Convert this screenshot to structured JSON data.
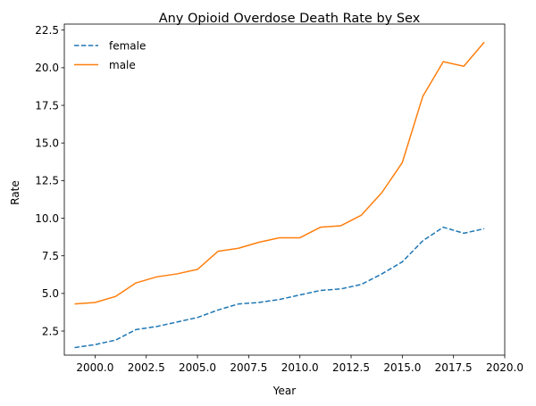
{
  "chart_data": {
    "type": "line",
    "title": "Any Opioid Overdose Death Rate by Sex",
    "xlabel": "Year",
    "ylabel": "Rate",
    "xlim": [
      1998.5,
      2020.0
    ],
    "ylim": [
      0.9,
      22.9
    ],
    "x_ticks": [
      2000.0,
      2002.5,
      2005.0,
      2007.5,
      2010.0,
      2012.5,
      2015.0,
      2017.5,
      2020.0
    ],
    "x_tick_labels": [
      "2000.0",
      "2002.5",
      "2005.0",
      "2007.5",
      "2010.0",
      "2012.5",
      "2015.0",
      "2017.5",
      "2020.0"
    ],
    "y_ticks": [
      2.5,
      5.0,
      7.5,
      10.0,
      12.5,
      15.0,
      17.5,
      20.0,
      22.5
    ],
    "y_tick_labels": [
      "2.5",
      "5.0",
      "7.5",
      "10.0",
      "12.5",
      "15.0",
      "17.5",
      "20.0",
      "22.5"
    ],
    "grid": false,
    "legend_position": "top-left",
    "x": [
      1999,
      2000,
      2001,
      2002,
      2003,
      2004,
      2005,
      2006,
      2007,
      2008,
      2009,
      2010,
      2011,
      2012,
      2013,
      2014,
      2015,
      2016,
      2017,
      2018,
      2019
    ],
    "series": [
      {
        "name": "female",
        "color": "#1f77b4",
        "style": "dashed",
        "values": [
          1.4,
          1.6,
          1.9,
          2.6,
          2.8,
          3.1,
          3.4,
          3.9,
          4.3,
          4.4,
          4.6,
          4.9,
          5.2,
          5.3,
          5.6,
          6.3,
          7.1,
          8.5,
          9.4,
          9.0,
          9.3
        ]
      },
      {
        "name": "male",
        "color": "#ff7f0e",
        "style": "solid",
        "values": [
          4.3,
          4.4,
          4.8,
          5.7,
          6.1,
          6.3,
          6.6,
          7.8,
          8.0,
          8.4,
          8.7,
          8.7,
          9.4,
          9.5,
          10.2,
          11.7,
          13.7,
          18.1,
          20.4,
          20.1,
          21.7
        ]
      }
    ]
  }
}
